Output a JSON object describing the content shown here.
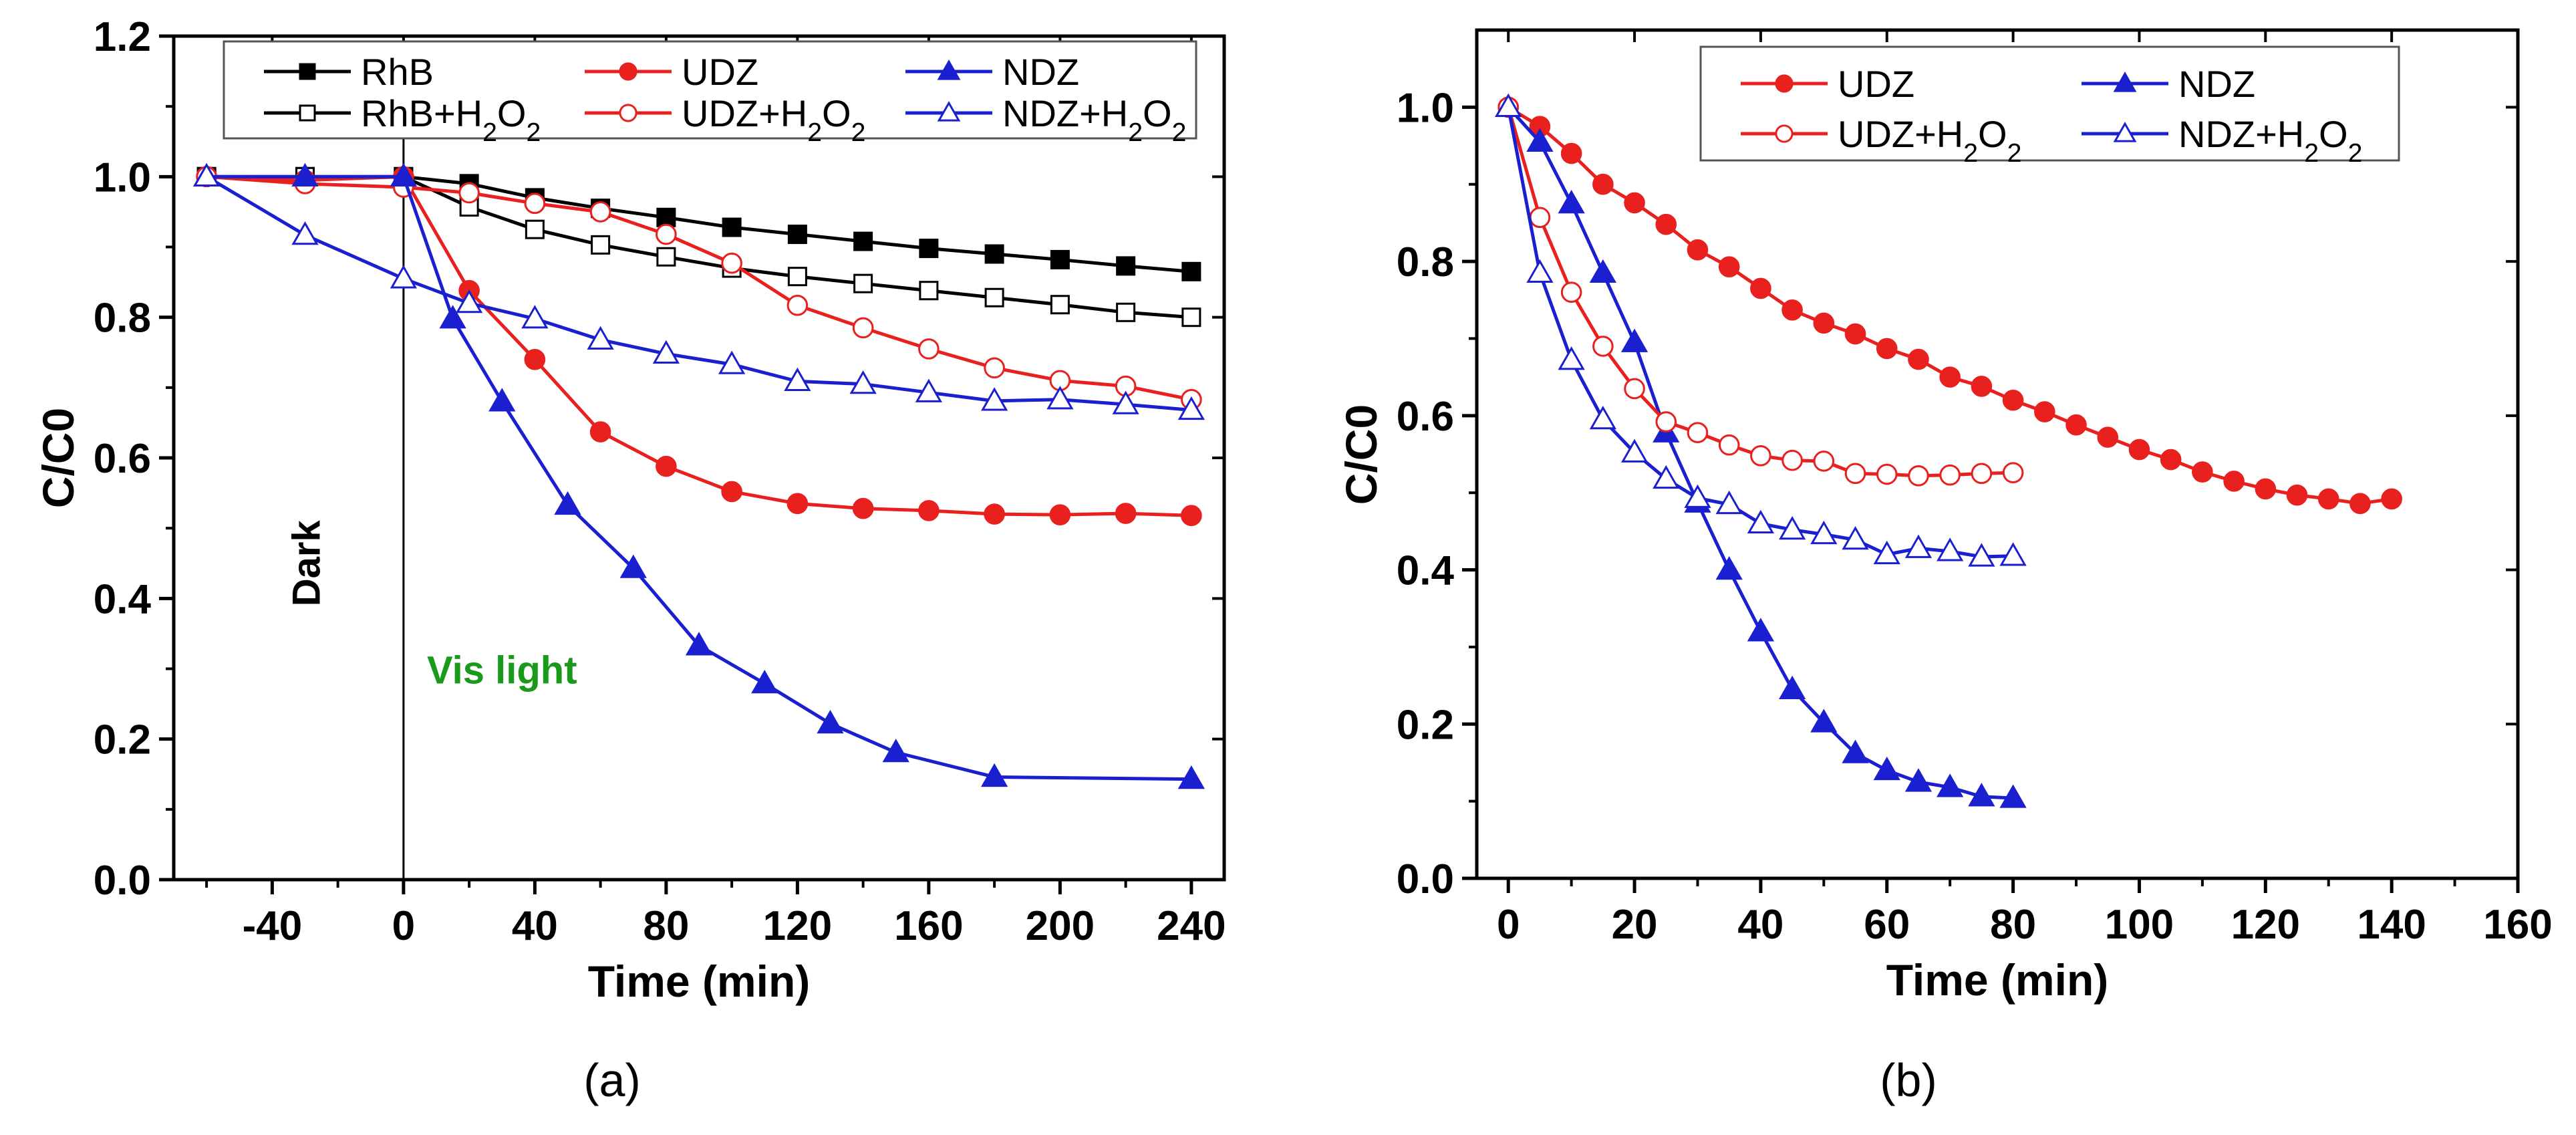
{
  "chart_data": [
    {
      "type": "line",
      "panel_label": "(a)",
      "xlabel": "Time (min)",
      "ylabel": "C/C0",
      "xlim": [
        -70,
        250
      ],
      "ylim": [
        0,
        1.2
      ],
      "xticks": [
        -40,
        0,
        40,
        80,
        120,
        160,
        200,
        240
      ],
      "yticks": [
        0.0,
        0.2,
        0.4,
        0.6,
        0.8,
        1.0,
        1.2
      ],
      "legend_placement": "top",
      "annotations": [
        {
          "text": "Dark",
          "color": "#000000"
        },
        {
          "text": "Vis light",
          "color": "#1a9a1a"
        }
      ],
      "vline_x": 0,
      "series": [
        {
          "name": "RhB",
          "color": "#000000",
          "marker": "square-filled",
          "x": [
            -60,
            -30,
            0,
            20,
            40,
            60,
            80,
            100,
            120,
            140,
            160,
            180,
            200,
            220,
            240
          ],
          "y": [
            1.0,
            1.0,
            1.0,
            0.99,
            0.97,
            0.955,
            0.942,
            0.928,
            0.918,
            0.908,
            0.898,
            0.89,
            0.882,
            0.873,
            0.865
          ]
        },
        {
          "name": "RhB+H2O2",
          "color": "#000000",
          "marker": "square-open",
          "x": [
            -60,
            -30,
            0,
            20,
            40,
            60,
            80,
            100,
            120,
            140,
            160,
            180,
            200,
            220,
            240
          ],
          "y": [
            1.0,
            1.0,
            1.0,
            0.957,
            0.925,
            0.903,
            0.886,
            0.87,
            0.858,
            0.848,
            0.838,
            0.828,
            0.818,
            0.807,
            0.8
          ]
        },
        {
          "name": "UDZ",
          "color": "#e8201e",
          "marker": "circle-filled",
          "x": [
            -60,
            -30,
            0,
            20,
            40,
            60,
            80,
            100,
            120,
            140,
            160,
            180,
            200,
            220,
            240
          ],
          "y": [
            1.0,
            0.995,
            1.0,
            0.838,
            0.74,
            0.637,
            0.588,
            0.552,
            0.535,
            0.528,
            0.525,
            0.52,
            0.519,
            0.521,
            0.518
          ]
        },
        {
          "name": "UDZ+H2O2",
          "color": "#e8201e",
          "marker": "circle-open",
          "x": [
            -60,
            -30,
            0,
            20,
            40,
            60,
            80,
            100,
            120,
            140,
            160,
            180,
            200,
            220,
            240
          ],
          "y": [
            1.0,
            0.99,
            0.985,
            0.977,
            0.962,
            0.95,
            0.918,
            0.877,
            0.817,
            0.785,
            0.755,
            0.728,
            0.71,
            0.702,
            0.683
          ]
        },
        {
          "name": "NDZ",
          "color": "#1a1fd0",
          "marker": "triangle-filled",
          "x": [
            -60,
            -30,
            0,
            15,
            30,
            50,
            70,
            90,
            110,
            130,
            150,
            180,
            240
          ],
          "y": [
            1.0,
            1.0,
            1.0,
            0.798,
            0.68,
            0.533,
            0.443,
            0.333,
            0.279,
            0.222,
            0.181,
            0.146,
            0.143
          ]
        },
        {
          "name": "NDZ+H2O2",
          "color": "#1a1fd0",
          "marker": "triangle-open",
          "x": [
            -60,
            -30,
            0,
            20,
            40,
            60,
            80,
            100,
            120,
            140,
            160,
            180,
            200,
            220,
            240
          ],
          "y": [
            1.0,
            0.917,
            0.855,
            0.82,
            0.798,
            0.768,
            0.748,
            0.733,
            0.709,
            0.705,
            0.693,
            0.681,
            0.683,
            0.676,
            0.668
          ]
        }
      ]
    },
    {
      "type": "line",
      "panel_label": "(b)",
      "xlabel": "Time (min)",
      "ylabel": "C/C0",
      "xlim": [
        -5,
        160
      ],
      "ylim": [
        0,
        1.1
      ],
      "xticks": [
        0,
        20,
        40,
        60,
        80,
        100,
        120,
        140,
        160
      ],
      "yticks": [
        0.0,
        0.2,
        0.4,
        0.6,
        0.8,
        1.0
      ],
      "legend_placement": "top-center",
      "series": [
        {
          "name": "UDZ",
          "color": "#e8201e",
          "marker": "circle-filled",
          "x": [
            0,
            5,
            10,
            15,
            20,
            25,
            30,
            35,
            40,
            45,
            50,
            55,
            60,
            65,
            70,
            75,
            80,
            85,
            90,
            95,
            100,
            105,
            110,
            115,
            120,
            125,
            130,
            135,
            140
          ],
          "y": [
            1.0,
            0.975,
            0.94,
            0.9,
            0.876,
            0.848,
            0.815,
            0.793,
            0.765,
            0.737,
            0.72,
            0.706,
            0.687,
            0.673,
            0.65,
            0.638,
            0.62,
            0.605,
            0.588,
            0.572,
            0.556,
            0.543,
            0.527,
            0.515,
            0.505,
            0.497,
            0.492,
            0.486,
            0.492
          ]
        },
        {
          "name": "NDZ",
          "color": "#1a1fd0",
          "marker": "triangle-filled",
          "x": [
            0,
            5,
            10,
            15,
            20,
            25,
            30,
            35,
            40,
            45,
            50,
            55,
            60,
            65,
            70,
            75,
            80
          ],
          "y": [
            1.0,
            0.955,
            0.875,
            0.785,
            0.695,
            0.578,
            0.487,
            0.4,
            0.32,
            0.245,
            0.202,
            0.162,
            0.14,
            0.125,
            0.118,
            0.106,
            0.104
          ]
        },
        {
          "name": "UDZ+H2O2",
          "color": "#e8201e",
          "marker": "circle-open",
          "x": [
            0,
            5,
            10,
            15,
            20,
            25,
            30,
            35,
            40,
            45,
            50,
            55,
            60,
            65,
            70,
            75,
            80
          ],
          "y": [
            1.0,
            0.857,
            0.76,
            0.69,
            0.635,
            0.592,
            0.578,
            0.562,
            0.548,
            0.542,
            0.541,
            0.525,
            0.524,
            0.522,
            0.523,
            0.525,
            0.526
          ]
        },
        {
          "name": "NDZ+H2O2",
          "color": "#1a1fd0",
          "marker": "triangle-open",
          "x": [
            0,
            5,
            10,
            15,
            20,
            25,
            30,
            35,
            40,
            45,
            50,
            55,
            60,
            65,
            70,
            75,
            80
          ],
          "y": [
            1.0,
            0.785,
            0.672,
            0.595,
            0.552,
            0.518,
            0.493,
            0.485,
            0.46,
            0.452,
            0.446,
            0.439,
            0.42,
            0.428,
            0.424,
            0.417,
            0.418
          ]
        }
      ]
    }
  ]
}
